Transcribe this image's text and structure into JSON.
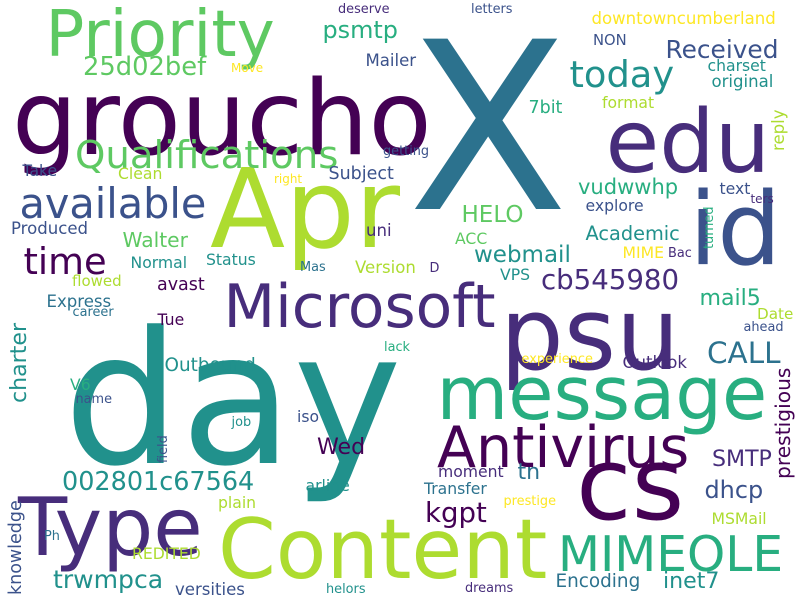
{
  "colors": {
    "background": "#ffffff",
    "palette": [
      "#440154",
      "#472d7b",
      "#3b528b",
      "#2c728e",
      "#21918c",
      "#28ae80",
      "#5ec962",
      "#addc30",
      "#fde725"
    ]
  },
  "words": [
    {
      "text": "X",
      "color": "#2c728e"
    },
    {
      "text": "day",
      "color": "#21918c"
    },
    {
      "text": "groucho",
      "color": "#440154"
    },
    {
      "text": "psu",
      "color": "#472d7b"
    },
    {
      "text": "edu",
      "color": "#472d7b"
    },
    {
      "text": "id",
      "color": "#3b528b"
    },
    {
      "text": "Apr",
      "color": "#addc30"
    },
    {
      "text": "cs",
      "color": "#440154"
    },
    {
      "text": "Content",
      "color": "#addc30"
    },
    {
      "text": "Type",
      "color": "#472d7b"
    },
    {
      "text": "message",
      "color": "#28ae80"
    },
    {
      "text": "Priority",
      "color": "#5ec962"
    },
    {
      "text": "Microsoft",
      "color": "#472d7b"
    },
    {
      "text": "Antivirus",
      "color": "#440154"
    },
    {
      "text": "MIMEOLE",
      "color": "#28ae80"
    },
    {
      "text": "Qualifications",
      "color": "#5ec962"
    },
    {
      "text": "available",
      "color": "#3b528b"
    },
    {
      "text": "today",
      "color": "#21918c"
    },
    {
      "text": "time",
      "color": "#440154"
    },
    {
      "text": "Received",
      "color": "#3b528b"
    },
    {
      "text": "25d02bef",
      "color": "#5ec962"
    },
    {
      "text": "psmtp",
      "color": "#28ae80"
    },
    {
      "text": "CALL",
      "color": "#2c728e"
    },
    {
      "text": "002801c67564",
      "color": "#21918c"
    },
    {
      "text": "cb545980",
      "color": "#472d7b"
    },
    {
      "text": "webmail",
      "color": "#21918c"
    },
    {
      "text": "HELO",
      "color": "#5ec962"
    },
    {
      "text": "kgpt",
      "color": "#440154"
    },
    {
      "text": "vudwwhp",
      "color": "#28ae80"
    },
    {
      "text": "trwmpca",
      "color": "#21918c"
    },
    {
      "text": "Walter",
      "color": "#5ec962"
    },
    {
      "text": "Wed",
      "color": "#440154"
    },
    {
      "text": "tn",
      "color": "#2c728e"
    },
    {
      "text": "SMTP",
      "color": "#472d7b"
    },
    {
      "text": "dhcp",
      "color": "#3b528b"
    },
    {
      "text": "inet7",
      "color": "#21918c"
    },
    {
      "text": "Encoding",
      "color": "#2c728e"
    },
    {
      "text": "mail5",
      "color": "#28ae80"
    },
    {
      "text": "Academic",
      "color": "#21918c"
    },
    {
      "text": "downtowncumberland",
      "color": "#fde725"
    },
    {
      "text": "charter",
      "color": "#21918c"
    },
    {
      "text": "Outbound",
      "color": "#21918c"
    },
    {
      "text": "Subject",
      "color": "#3b528b"
    },
    {
      "text": "Express",
      "color": "#2c728e"
    },
    {
      "text": "Produced",
      "color": "#3b528b"
    },
    {
      "text": "Take",
      "color": "#3b528b"
    },
    {
      "text": "Mailer",
      "color": "#3b528b"
    },
    {
      "text": "original",
      "color": "#21918c"
    },
    {
      "text": "charset",
      "color": "#21918c"
    },
    {
      "text": "NON",
      "color": "#3b528b"
    },
    {
      "text": "format",
      "color": "#addc30"
    },
    {
      "text": "7bit",
      "color": "#28ae80"
    },
    {
      "text": "reply",
      "color": "#addc30"
    },
    {
      "text": "text",
      "color": "#3b528b"
    },
    {
      "text": "explore",
      "color": "#3b528b"
    },
    {
      "text": "ters",
      "color": "#472d7b"
    },
    {
      "text": "turned",
      "color": "#28ae80"
    },
    {
      "text": "Bac",
      "color": "#472d7b"
    },
    {
      "text": "MIME",
      "color": "#fde725"
    },
    {
      "text": "VPS",
      "color": "#21918c"
    },
    {
      "text": "ACC",
      "color": "#5ec962"
    },
    {
      "text": "uni",
      "color": "#472d7b"
    },
    {
      "text": "Normal",
      "color": "#21918c"
    },
    {
      "text": "Status",
      "color": "#21918c"
    },
    {
      "text": "Version",
      "color": "#addc30"
    },
    {
      "text": "D",
      "color": "#472d7b"
    },
    {
      "text": "Mas",
      "color": "#2c728e"
    },
    {
      "text": "flowed",
      "color": "#addc30"
    },
    {
      "text": "avast",
      "color": "#440154"
    },
    {
      "text": "Tue",
      "color": "#440154"
    },
    {
      "text": "career",
      "color": "#2c728e"
    },
    {
      "text": "Date",
      "color": "#addc30"
    },
    {
      "text": "ahead",
      "color": "#3b528b"
    },
    {
      "text": "Outlook",
      "color": "#472d7b"
    },
    {
      "text": "prestigious",
      "color": "#440154"
    },
    {
      "text": "V6",
      "color": "#28ae80"
    },
    {
      "text": "name",
      "color": "#3b528b"
    },
    {
      "text": "iso",
      "color": "#3b528b"
    },
    {
      "text": "job",
      "color": "#21918c"
    },
    {
      "text": "field",
      "color": "#3b528b"
    },
    {
      "text": "moment",
      "color": "#472d7b"
    },
    {
      "text": "arline",
      "color": "#21918c"
    },
    {
      "text": "plain",
      "color": "#addc30"
    },
    {
      "text": "Transfer",
      "color": "#2c728e"
    },
    {
      "text": "prestige",
      "color": "#fde725"
    },
    {
      "text": "MSMail",
      "color": "#addc30"
    },
    {
      "text": "knowledge",
      "color": "#3b528b"
    },
    {
      "text": "Ph",
      "color": "#2c728e"
    },
    {
      "text": "REDITED",
      "color": "#addc30"
    },
    {
      "text": "versities",
      "color": "#3b528b"
    },
    {
      "text": "helors",
      "color": "#21918c"
    },
    {
      "text": "dreams",
      "color": "#472d7b"
    },
    {
      "text": "experience",
      "color": "#fde725"
    },
    {
      "text": "lack",
      "color": "#28ae80"
    },
    {
      "text": "deserve",
      "color": "#472d7b"
    },
    {
      "text": "letters",
      "color": "#3b528b"
    },
    {
      "text": "Move",
      "color": "#fde725"
    },
    {
      "text": "right",
      "color": "#fde725"
    },
    {
      "text": "getting",
      "color": "#3b528b"
    },
    {
      "text": "Clean",
      "color": "#addc30"
    }
  ]
}
